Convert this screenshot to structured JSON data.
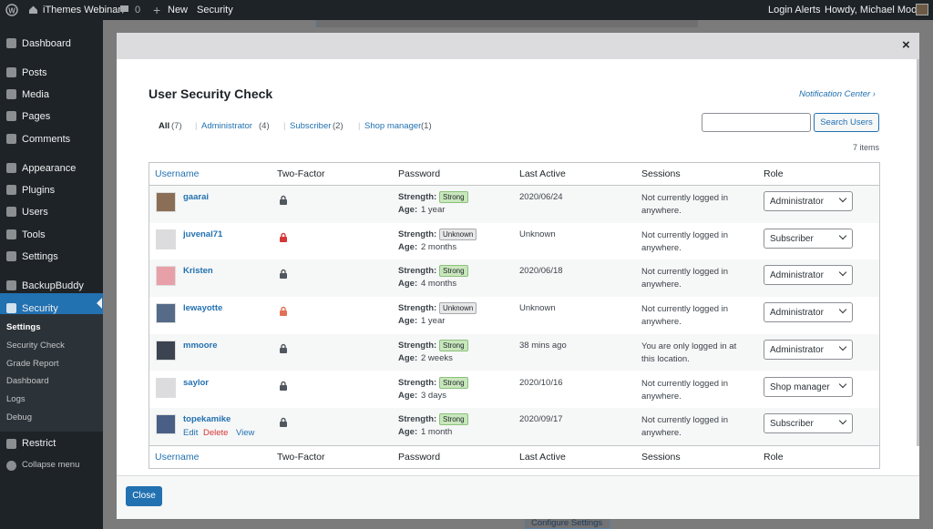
{
  "admin_bar": {
    "site": "iThemes Webinar",
    "comments": "0",
    "new": "New",
    "security": "Security",
    "login_alerts": "Login Alerts",
    "howdy": "Howdy, Michael Moore"
  },
  "sidebar": {
    "items": [
      "Dashboard",
      "Posts",
      "Media",
      "Pages",
      "Comments",
      "Appearance",
      "Plugins",
      "Users",
      "Tools",
      "Settings",
      "BackupBuddy",
      "Security"
    ],
    "submenu": [
      "Settings",
      "Security Check",
      "Grade Report",
      "Dashboard",
      "Logs",
      "Debug"
    ],
    "after": [
      "Restrict",
      "Collapse menu"
    ]
  },
  "modal": {
    "title": "User Security Check",
    "notification_center": "Notification Center ›",
    "filters": [
      {
        "label": "All",
        "count": "(7)"
      },
      {
        "label": "Administrator",
        "count": "(4)"
      },
      {
        "label": "Subscriber",
        "count": "(2)"
      },
      {
        "label": "Shop manager",
        "count": "(1)"
      }
    ],
    "search_button": "Search Users",
    "items_count": "7 items",
    "columns": [
      "Username",
      "Two-Factor",
      "Password",
      "Last Active",
      "Sessions",
      "Role"
    ],
    "strength_label": "Strength:",
    "age_label": "Age:",
    "rows": [
      {
        "username": "gaarai",
        "lock_color": "#50575e",
        "strength": "Strong",
        "age": "1 year",
        "last_active": "2020/06/24",
        "sessions": "Not currently logged in anywhere.",
        "role": "Administrator"
      },
      {
        "username": "juvenal71",
        "lock_color": "#d63638",
        "strength": "Unknown",
        "age": "2 months",
        "last_active": "Unknown",
        "sessions": "Not currently logged in anywhere.",
        "role": "Subscriber"
      },
      {
        "username": "Kristen",
        "lock_color": "#50575e",
        "strength": "Strong",
        "age": "4 months",
        "last_active": "2020/06/18",
        "sessions": "Not currently logged in anywhere.",
        "role": "Administrator"
      },
      {
        "username": "lewayotte",
        "lock_color": "#e26f56",
        "strength": "Unknown",
        "age": "1 year",
        "last_active": "Unknown",
        "sessions": "Not currently logged in anywhere.",
        "role": "Administrator"
      },
      {
        "username": "mmoore",
        "lock_color": "#50575e",
        "strength": "Strong",
        "age": "2 weeks",
        "last_active": "38 mins ago",
        "sessions": "You are only logged in at this location.",
        "role": "Administrator"
      },
      {
        "username": "saylor",
        "lock_color": "#50575e",
        "strength": "Strong",
        "age": "3 days",
        "last_active": "2020/10/16",
        "sessions": "Not currently logged in anywhere.",
        "role": "Shop manager"
      },
      {
        "username": "topekamike",
        "lock_color": "#50575e",
        "strength": "Strong",
        "age": "1 month",
        "last_active": "2020/09/17",
        "sessions": "Not currently logged in anywhere.",
        "role": "Subscriber",
        "actions": [
          "Edit",
          "Delete",
          "View"
        ]
      }
    ],
    "close_button": "Close"
  },
  "background": {
    "configure_settings": "Configure Settings"
  }
}
